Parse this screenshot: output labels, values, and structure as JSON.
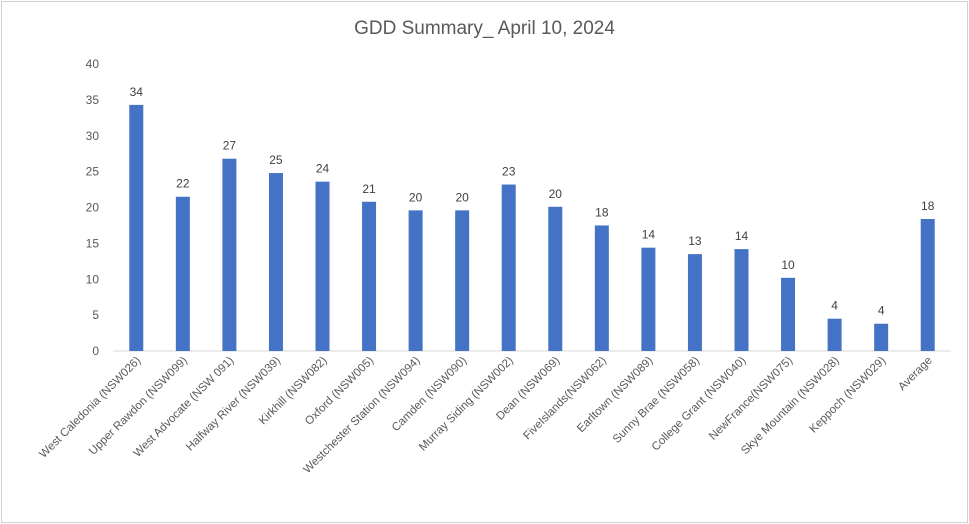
{
  "chart_data": {
    "type": "bar",
    "title": "GDD Summary_ April 10, 2024",
    "xlabel": "",
    "ylabel": "",
    "ylim": [
      0,
      40
    ],
    "yticks": [
      "0",
      "5",
      "10",
      "15",
      "20",
      "25",
      "30",
      "35",
      "40"
    ],
    "grid": false,
    "legend": "none",
    "bar_color": "#4472c4",
    "categories": [
      "West Caledonia (NSW026)",
      "Upper Rawdon (NSW099)",
      "West Advocate (NSW 091)",
      "Halfway River (NSW039)",
      "Kirkhill (NSW082)",
      "Oxford (NSW005)",
      "Westchester Station (NSW094)",
      "Camden (NSW090)",
      "Murray Siding (NSW002)",
      "Dean (NSW069)",
      "FiveIslands(NSW062)",
      "Earltown (NSW089)",
      "Sunny Brae (NSW058)",
      "College Grant (NSW040)",
      "NewFrance(NSW075)",
      "Skye Mountain (NSW028)",
      "Keppoch (NSW029)",
      "Average"
    ],
    "values": [
      34.3,
      21.5,
      26.8,
      24.8,
      23.6,
      20.8,
      19.6,
      19.6,
      23.2,
      20.1,
      17.5,
      14.4,
      13.5,
      14.2,
      10.2,
      4.5,
      3.8,
      18.4
    ],
    "data_labels": [
      "34",
      "22",
      "27",
      "25",
      "24",
      "21",
      "20",
      "20",
      "23",
      "20",
      "18",
      "14",
      "13",
      "14",
      "10",
      "4",
      "4",
      "18"
    ]
  }
}
